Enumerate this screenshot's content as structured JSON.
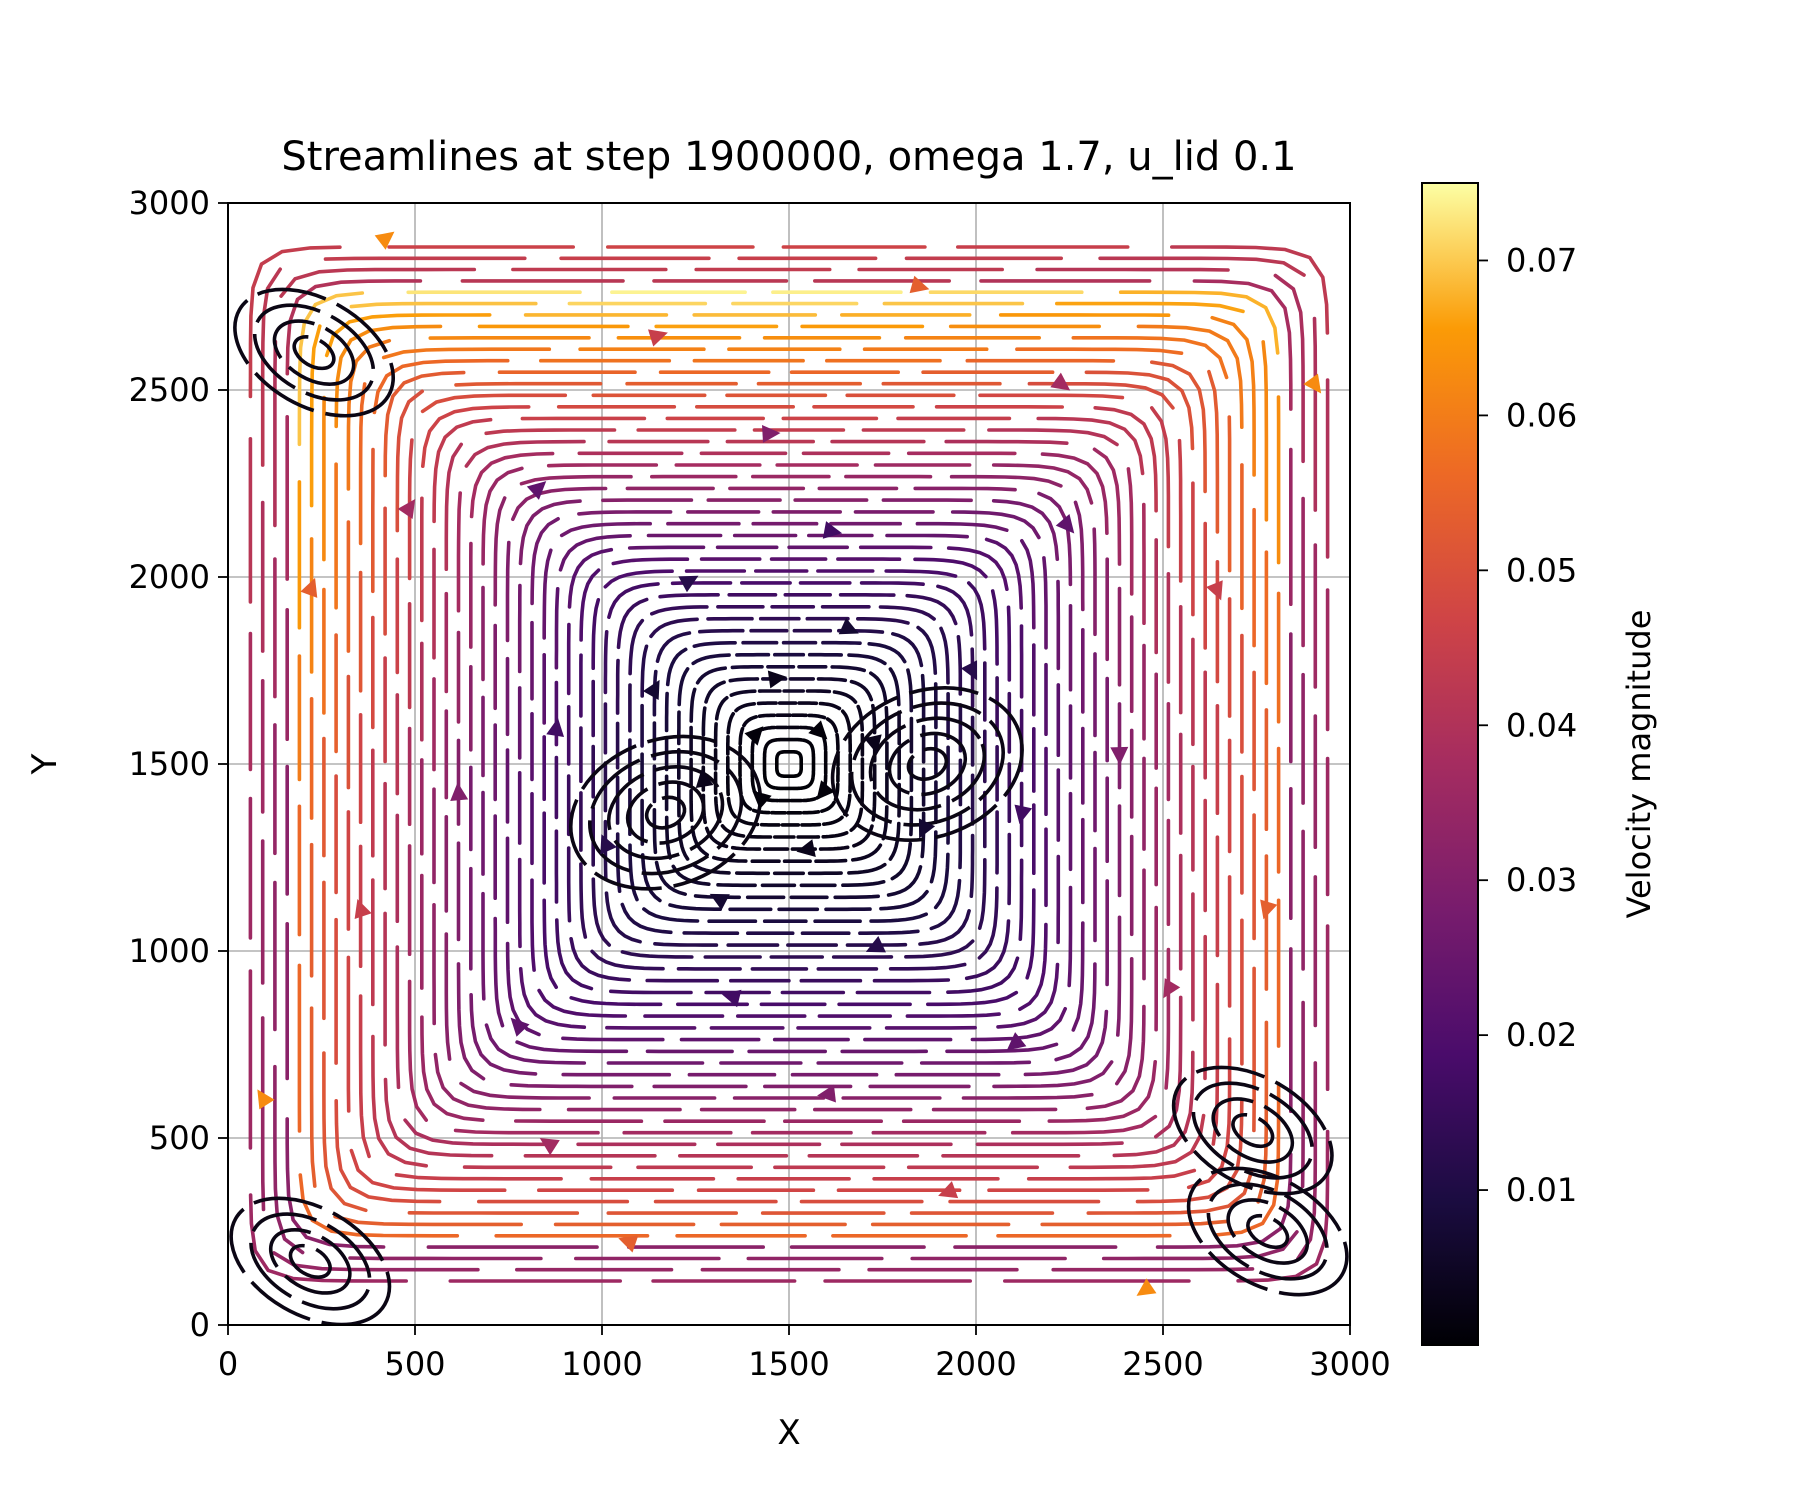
{
  "chart_data": {
    "type": "streamplot",
    "title": "Streamlines at step 1900000, omega 1.7, u_lid 0.1",
    "xlabel": "X",
    "ylabel": "Y",
    "xlim": [
      0,
      3000
    ],
    "ylim": [
      0,
      3000
    ],
    "xticks": [
      "0",
      "500",
      "1000",
      "1500",
      "2000",
      "2500",
      "3000"
    ],
    "yticks": [
      "0",
      "500",
      "1000",
      "1500",
      "2000",
      "2500",
      "3000"
    ],
    "grid": true,
    "colormap": "inferno",
    "colorbar": {
      "label": "Velocity magnitude",
      "range": [
        0.0,
        0.075
      ],
      "ticks": [
        "0.01",
        "0.02",
        "0.03",
        "0.04",
        "0.05",
        "0.06",
        "0.07"
      ]
    },
    "flow_features": {
      "lid_velocity": 0.1,
      "main_vortex_center": [
        1500,
        1500
      ],
      "inner_eddies": [
        [
          1170,
          1370
        ],
        [
          1870,
          1500
        ]
      ],
      "corner_eddies": [
        [
          230,
          2600
        ],
        [
          220,
          170
        ],
        [
          2780,
          250
        ],
        [
          2740,
          520
        ]
      ]
    }
  }
}
